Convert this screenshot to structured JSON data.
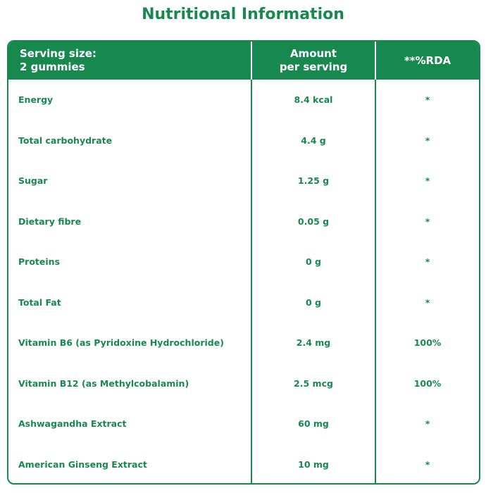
{
  "title": "Nutritional Information",
  "table": {
    "header": [
      "Serving size:\n2 gummies",
      "Amount\nper serving",
      "**%RDA"
    ],
    "rows": [
      [
        "Energy",
        "8.4 kcal",
        "*"
      ],
      [
        "Total carbohydrate",
        "4.4 g",
        "*"
      ],
      [
        "Sugar",
        "1.25 g",
        "*"
      ],
      [
        "Dietary fibre",
        "0.05 g",
        "*"
      ],
      [
        "Proteins",
        "0 g",
        "*"
      ],
      [
        "Total Fat",
        "0 g",
        "*"
      ],
      [
        "Vitamin B6 (as Pyridoxine Hydrochloride)",
        "2.4 mg",
        "100%"
      ],
      [
        "Vitamin B12 (as Methylcobalamin)",
        "2.5 mcg",
        "100%"
      ],
      [
        "Ashwagandha Extract",
        "60 mg",
        "*"
      ],
      [
        "American Ginseng Extract",
        "10 mg",
        "*"
      ]
    ]
  }
}
